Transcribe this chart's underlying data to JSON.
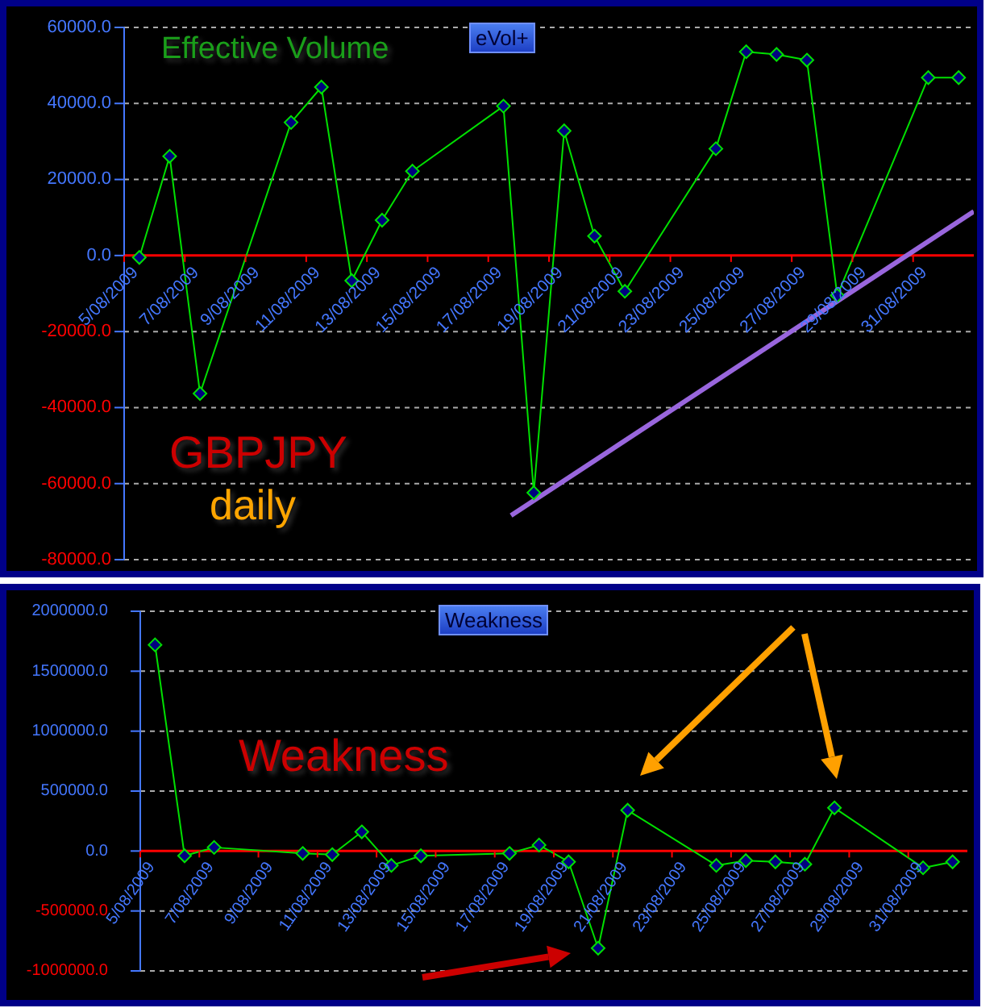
{
  "chart_data": [
    {
      "type": "line",
      "title": "eVol+",
      "annotations": [
        "Effective Volume",
        "GBPJPY",
        "daily"
      ],
      "x": [
        "2009-08-05T12:00",
        "2009-08-06T12:00",
        "2009-08-07T12:00",
        "2009-08-10T12:00",
        "2009-08-11T12:00",
        "2009-08-12T12:00",
        "2009-08-13T12:00",
        "2009-08-14T12:00",
        "2009-08-17T12:00",
        "2009-08-18T12:00",
        "2009-08-19T12:00",
        "2009-08-20T12:00",
        "2009-08-21T12:00",
        "2009-08-24T12:00",
        "2009-08-25T12:00",
        "2009-08-26T12:00",
        "2009-08-27T12:00",
        "2009-08-28T12:00",
        "2009-08-31T12:00",
        "2009-09-01T12:00"
      ],
      "series": [
        {
          "color": "#00e000",
          "values": [
            -500,
            26100,
            -36300,
            35000,
            44300,
            -6600,
            9300,
            22200,
            39300,
            -62400,
            32800,
            5100,
            -9400,
            28100,
            53600,
            52900,
            51400,
            -10500,
            46800,
            46800
          ]
        },
        {
          "type": "line",
          "color": "#9966dd",
          "marker": "none",
          "x": [
            "2009-08-17T18:00",
            "2009-09-02"
          ],
          "values": [
            -68400,
            11600
          ]
        }
      ],
      "xlim": [
        "2009-08-05",
        "2009-09-02"
      ],
      "xticks": [
        {
          "value": "2009-08-05",
          "label": "5/08/2009"
        },
        {
          "value": "2009-08-07",
          "label": "7/08/2009"
        },
        {
          "value": "2009-08-09",
          "label": "9/08/2009"
        },
        {
          "value": "2009-08-11",
          "label": "11/08/2009"
        },
        {
          "value": "2009-08-13",
          "label": "13/08/2009"
        },
        {
          "value": "2009-08-15",
          "label": "15/08/2009"
        },
        {
          "value": "2009-08-17",
          "label": "17/08/2009"
        },
        {
          "value": "2009-08-19",
          "label": "19/08/2009"
        },
        {
          "value": "2009-08-21",
          "label": "21/08/2009"
        },
        {
          "value": "2009-08-23",
          "label": "23/08/2009"
        },
        {
          "value": "2009-08-25",
          "label": "25/08/2009"
        },
        {
          "value": "2009-08-27",
          "label": "27/08/2009"
        },
        {
          "value": "2009-08-29",
          "label": "29/08/2009"
        },
        {
          "value": "2009-08-31",
          "label": "31/08/2009"
        }
      ],
      "ylim": [
        -80000,
        60000
      ],
      "yticks": [
        {
          "value": -80000,
          "label": "-80000.0"
        },
        {
          "value": -60000,
          "label": "-60000.0"
        },
        {
          "value": -40000,
          "label": "-40000.0"
        },
        {
          "value": -20000,
          "label": "-20000.0"
        },
        {
          "value": 0,
          "label": "0.0"
        },
        {
          "value": 20000,
          "label": "20000.0"
        },
        {
          "value": 40000,
          "label": "40000.0"
        },
        {
          "value": 60000,
          "label": "60000.0"
        }
      ],
      "grid": "y",
      "marker": "diamond",
      "legend": false
    },
    {
      "type": "line",
      "title": "Weakness",
      "annotations": [
        "Weakness"
      ],
      "x": [
        "2009-08-05T12:00",
        "2009-08-06T12:00",
        "2009-08-07T12:00",
        "2009-08-10T12:00",
        "2009-08-11T12:00",
        "2009-08-12T12:00",
        "2009-08-13T12:00",
        "2009-08-14T12:00",
        "2009-08-17T12:00",
        "2009-08-18T12:00",
        "2009-08-19T12:00",
        "2009-08-20T12:00",
        "2009-08-21T12:00",
        "2009-08-24T12:00",
        "2009-08-25T12:00",
        "2009-08-26T12:00",
        "2009-08-27T12:00",
        "2009-08-28T12:00",
        "2009-08-31T12:00",
        "2009-09-01T12:00"
      ],
      "series": [
        {
          "color": "#00e000",
          "values": [
            1720000,
            -40000,
            30000,
            -20000,
            -30000,
            160000,
            -120000,
            -40000,
            -20000,
            50000,
            -90000,
            -810000,
            340000,
            -120000,
            -80000,
            -90000,
            -110000,
            360000,
            -140000,
            -90000
          ]
        }
      ],
      "xlim": [
        "2009-08-05",
        "2009-09-02"
      ],
      "xticks": [
        {
          "value": "2009-08-05",
          "label": "5/08/2009"
        },
        {
          "value": "2009-08-07",
          "label": "7/08/2009"
        },
        {
          "value": "2009-08-09",
          "label": "9/08/2009"
        },
        {
          "value": "2009-08-11",
          "label": "11/08/2009"
        },
        {
          "value": "2009-08-13",
          "label": "13/08/2009"
        },
        {
          "value": "2009-08-15",
          "label": "15/08/2009"
        },
        {
          "value": "2009-08-17",
          "label": "17/08/2009"
        },
        {
          "value": "2009-08-19",
          "label": "19/08/2009"
        },
        {
          "value": "2009-08-21",
          "label": "21/08/2009"
        },
        {
          "value": "2009-08-23",
          "label": "23/08/2009"
        },
        {
          "value": "2009-08-25",
          "label": "25/08/2009"
        },
        {
          "value": "2009-08-27",
          "label": "27/08/2009"
        },
        {
          "value": "2009-08-29",
          "label": "29/08/2009"
        },
        {
          "value": "2009-08-31",
          "label": "31/08/2009"
        }
      ],
      "ylim": [
        -1000000,
        2000000
      ],
      "yticks": [
        {
          "value": -1000000,
          "label": "-1000000.0"
        },
        {
          "value": -500000,
          "label": "-500000.0"
        },
        {
          "value": 0,
          "label": "0.0"
        },
        {
          "value": 500000,
          "label": "500000.0"
        },
        {
          "value": 1000000,
          "label": "1000000.0"
        },
        {
          "value": 1500000,
          "label": "1500000.0"
        },
        {
          "value": 2000000,
          "label": "2000000.0"
        }
      ],
      "grid": "y",
      "marker": "diamond",
      "legend": false
    }
  ]
}
